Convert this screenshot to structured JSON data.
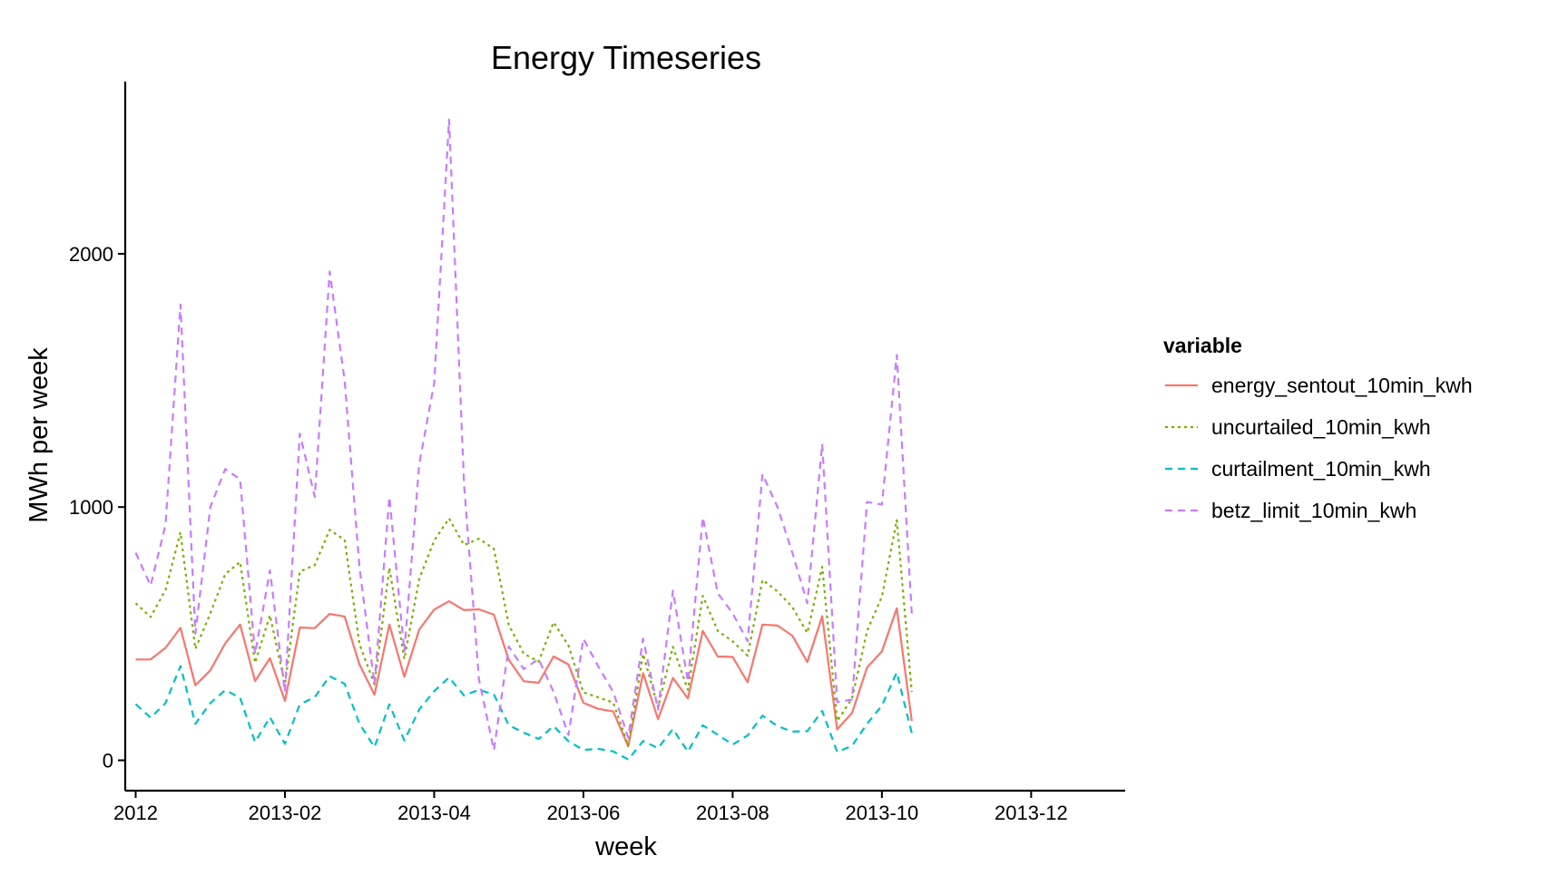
{
  "chart_data": {
    "type": "line",
    "title": "Energy Timeseries",
    "xlabel": "week",
    "ylabel": "MWh per week",
    "x_tick_labels": [
      "2012",
      "2013-02",
      "2013-04",
      "2013-06",
      "2013-08",
      "2013-10",
      "2013-12"
    ],
    "x_tick_weeks": [
      0,
      10,
      20,
      30,
      40,
      50,
      60
    ],
    "y_ticks": [
      0,
      1000,
      2000
    ],
    "ylim": [
      -120,
      2680
    ],
    "xlim": [
      -0.7,
      66.3
    ],
    "grid": false,
    "legend": {
      "title": "variable",
      "position": "right"
    },
    "x_unit": "week index from first week shown",
    "series": [
      {
        "name": "energy_sentout_10min_kwh",
        "color": "#F8766D",
        "dash": "solid",
        "values": [
          398,
          398,
          444,
          523,
          296,
          355,
          462,
          536,
          313,
          403,
          235,
          524,
          522,
          578,
          568,
          378,
          259,
          536,
          330,
          516,
          595,
          628,
          593,
          596,
          575,
          397,
          312,
          306,
          410,
          378,
          227,
          203,
          193,
          55,
          344,
          162,
          325,
          244,
          511,
          410,
          408,
          308,
          536,
          532,
          492,
          388,
          569,
          122,
          187,
          366,
          430,
          600,
          155
        ]
      },
      {
        "name": "uncurtailed_10min_kwh",
        "color": "#7CAE00",
        "dash": "dotted",
        "values": [
          620,
          566,
          672,
          900,
          440,
          580,
          735,
          783,
          385,
          573,
          300,
          745,
          771,
          910,
          870,
          458,
          300,
          760,
          400,
          716,
          868,
          955,
          850,
          875,
          835,
          535,
          421,
          390,
          545,
          453,
          268,
          248,
          228,
          58,
          420,
          210,
          448,
          278,
          649,
          511,
          470,
          413,
          712,
          667,
          605,
          503,
          764,
          155,
          244,
          510,
          646,
          948,
          270
        ]
      },
      {
        "name": "curtailment_10min_kwh",
        "color": "#00BFC4",
        "dash": "dashed",
        "values": [
          222,
          168,
          226,
          372,
          144,
          226,
          277,
          247,
          72,
          170,
          65,
          221,
          249,
          332,
          302,
          144,
          52,
          221,
          78,
          200,
          273,
          327,
          256,
          278,
          260,
          138,
          109,
          84,
          135,
          75,
          41,
          45,
          35,
          3,
          76,
          48,
          123,
          34,
          138,
          101,
          62,
          98,
          176,
          135,
          113,
          115,
          195,
          33,
          57,
          144,
          216,
          347,
          107
        ]
      },
      {
        "name": "betz_limit_10min_kwh",
        "color": "#C77CFF",
        "dash": "dashed",
        "values": [
          820,
          690,
          930,
          1800,
          500,
          1000,
          1150,
          1110,
          420,
          750,
          270,
          1290,
          1040,
          1930,
          1500,
          760,
          300,
          1040,
          430,
          1170,
          1490,
          2530,
          1090,
          320,
          40,
          450,
          360,
          400,
          270,
          100,
          480,
          370,
          270,
          90,
          480,
          200,
          670,
          310,
          960,
          660,
          580,
          470,
          1130,
          1000,
          820,
          620,
          1250,
          230,
          240,
          1020,
          1010,
          1600,
          580
        ]
      }
    ]
  }
}
